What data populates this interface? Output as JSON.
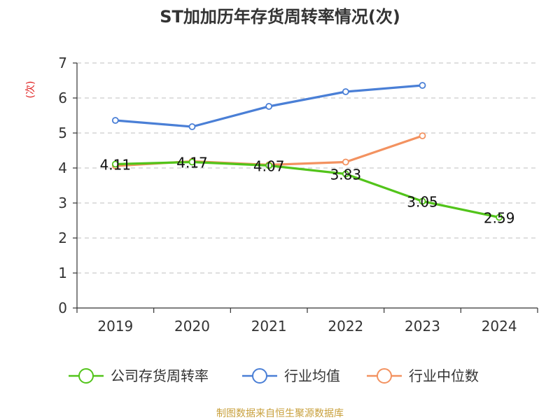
{
  "chart_data": {
    "type": "line",
    "title": "ST加加历年存货周转率情况(次)",
    "ylabel": "(次)",
    "xlabel": "",
    "categories": [
      "2019",
      "2020",
      "2021",
      "2022",
      "2023",
      "2024"
    ],
    "ylim": [
      0,
      7
    ],
    "yticks": [
      0,
      1,
      2,
      3,
      4,
      5,
      6,
      7
    ],
    "grid": true,
    "legend_position": "bottom",
    "series": [
      {
        "name": "公司存货周转率",
        "color": "#52c41a",
        "values": [
          4.11,
          4.17,
          4.07,
          3.83,
          3.05,
          2.59
        ],
        "labels": [
          "4.11",
          "4.17",
          "4.07",
          "3.83",
          "3.05",
          "2.59"
        ]
      },
      {
        "name": "行业均值",
        "color": "#4a7fd6",
        "values": [
          5.36,
          5.18,
          5.76,
          6.18,
          6.36,
          null
        ]
      },
      {
        "name": "行业中位数",
        "color": "#f39260",
        "values": [
          4.06,
          4.19,
          4.09,
          4.17,
          4.92,
          null
        ]
      }
    ]
  },
  "source": "制图数据来自恒生聚源数据库"
}
